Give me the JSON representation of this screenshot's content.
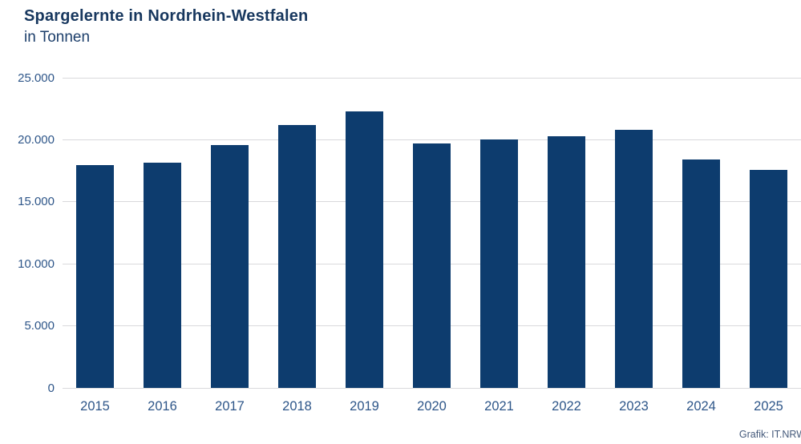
{
  "header": {
    "title": "Spargelernte in Nordrhein-Westfalen",
    "subtitle": "in Tonnen"
  },
  "footer": {
    "source_credit": "Grafik: IT.NRW"
  },
  "colors": {
    "bar": "#0d3c6e",
    "title_text": "#17375e",
    "axis_label_text": "#2e5689",
    "gridline": "#d9d9dc",
    "background": "#ffffff"
  },
  "chart_data": {
    "type": "bar",
    "title": "Spargelernte in Nordrhein-Westfalen",
    "subtitle": "in Tonnen",
    "xlabel": "",
    "ylabel": "in Tonnen",
    "categories": [
      "2015",
      "2016",
      "2017",
      "2018",
      "2019",
      "2020",
      "2021",
      "2022",
      "2023",
      "2024",
      "2025"
    ],
    "values": [
      17950,
      18150,
      19550,
      21200,
      22300,
      19700,
      20000,
      20300,
      20800,
      18400,
      17600
    ],
    "ylim": [
      0,
      25000
    ],
    "ytick_values": [
      0,
      5000,
      10000,
      15000,
      20000,
      25000
    ],
    "ytick_labels": [
      "0",
      "5.000",
      "10.000",
      "15.000",
      "20.000",
      "25.000"
    ],
    "grid": "horizontal",
    "legend": false,
    "annotations": [
      "Grafik: IT.NRW"
    ]
  }
}
